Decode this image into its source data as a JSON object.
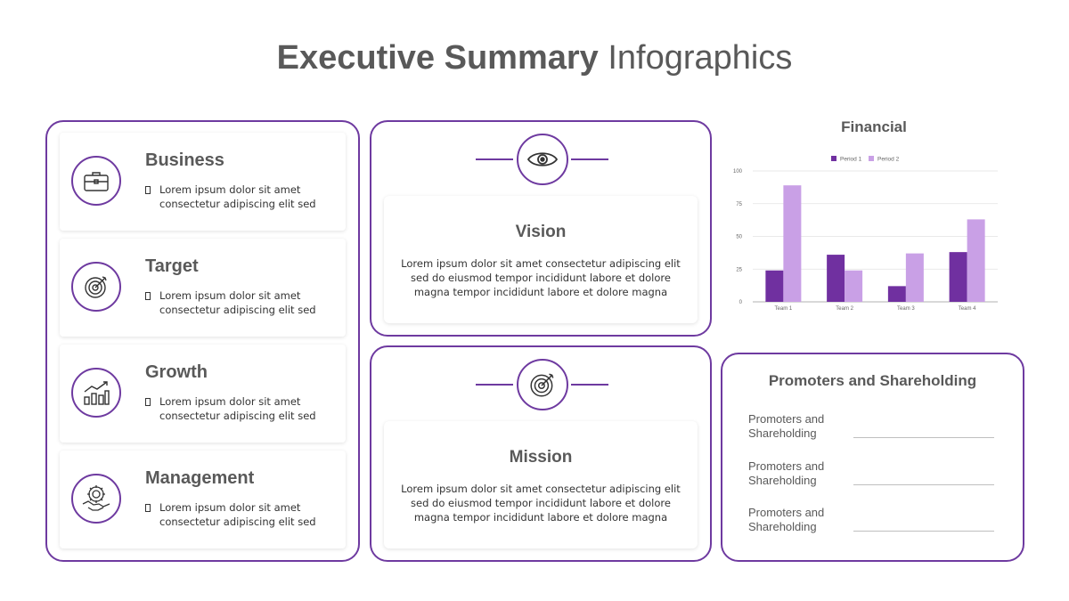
{
  "title": {
    "bold": "Executive Summary",
    "light": "Infographics"
  },
  "left_cards": [
    {
      "title": "Business",
      "text": "Lorem ipsum dolor sit amet consectetur adipiscing elit sed",
      "icon": "briefcase-icon"
    },
    {
      "title": "Target",
      "text": "Lorem ipsum dolor sit amet consectetur adipiscing elit sed",
      "icon": "target-icon"
    },
    {
      "title": "Growth",
      "text": "Lorem ipsum dolor sit amet consectetur adipiscing elit sed",
      "icon": "growth-chart-icon"
    },
    {
      "title": "Management",
      "text": "Lorem ipsum dolor sit amet consectetur adipiscing elit sed",
      "icon": "handshake-gear-icon"
    }
  ],
  "vision": {
    "title": "Vision",
    "text": "Lorem ipsum dolor sit amet consectetur adipiscing elit sed do eiusmod tempor incididunt  labore et dolore magna tempor incididunt  labore et dolore magna",
    "icon": "eye-icon"
  },
  "mission": {
    "title": "Mission",
    "text": "Lorem ipsum dolor sit amet consectetur adipiscing elit sed do eiusmod tempor incididunt  labore et dolore magna tempor incididunt  labore et dolore magna",
    "icon": "target-icon"
  },
  "financial": {
    "title": "Financial"
  },
  "promoters": {
    "title": "Promoters and Shareholding",
    "rows": [
      "Promoters and Shareholding",
      "Promoters and Shareholding",
      "Promoters and Shareholding"
    ]
  },
  "colors": {
    "accent": "#6e3aa0",
    "period1": "#7030a0",
    "period2": "#c9a0e6"
  },
  "chart_data": {
    "type": "bar",
    "categories": [
      "Team 1",
      "Team 2",
      "Team 3",
      "Team 4"
    ],
    "series": [
      {
        "name": "Period 1",
        "values": [
          24,
          36,
          12,
          38
        ]
      },
      {
        "name": "Period 2",
        "values": [
          89,
          24,
          37,
          63
        ]
      }
    ],
    "yticks": [
      "0",
      "25",
      "50",
      "75",
      "100"
    ],
    "ylim": [
      0,
      100
    ],
    "legend": "top-center",
    "grid": true
  }
}
